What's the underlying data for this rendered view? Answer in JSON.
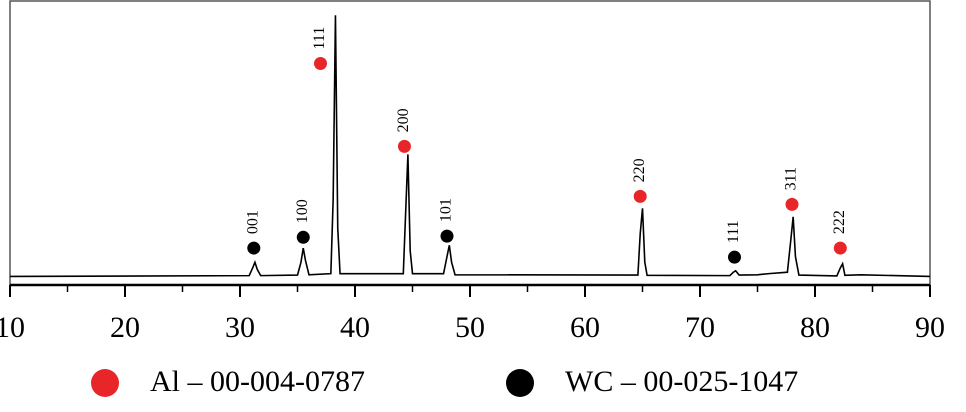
{
  "chart_data": {
    "type": "line",
    "x": [
      10,
      30.8,
      31.1,
      31.3,
      31.5,
      31.8,
      35.0,
      35.3,
      35.5,
      35.7,
      36.0,
      37.9,
      38.1,
      38.3,
      38.5,
      38.7,
      44.2,
      44.4,
      44.6,
      44.8,
      45.0,
      47.7,
      48.0,
      48.2,
      48.4,
      48.7,
      64.6,
      64.8,
      65.0,
      65.2,
      65.4,
      72.6,
      72.9,
      73.1,
      73.4,
      75,
      76,
      77.6,
      77.9,
      78.1,
      78.3,
      78.6,
      81.9,
      82.2,
      82.4,
      82.6,
      84,
      90
    ],
    "values": [
      3,
      3.3,
      6,
      8,
      5.5,
      3.3,
      3.5,
      8,
      13,
      8.5,
      3.6,
      4,
      30,
      95,
      20,
      4,
      4,
      25,
      46,
      12,
      4,
      4,
      10,
      14,
      8,
      3.6,
      3.5,
      18,
      27,
      8,
      3.4,
      3.3,
      4.5,
      5,
      3.5,
      3.6,
      4,
      4.5,
      16,
      24,
      10,
      3.5,
      3.2,
      6,
      7.5,
      3.4,
      3.6,
      3
    ],
    "color": "#000000",
    "xlim": [
      10,
      90
    ],
    "xticks": [
      10,
      20,
      30,
      40,
      50,
      60,
      70,
      80,
      90
    ],
    "xminorticks": [
      15,
      25,
      35,
      45,
      55,
      65,
      75,
      85
    ],
    "ylim": [
      0,
      100
    ],
    "phases": [
      {
        "name": "Al – 00-004-0787",
        "color": "#e8262a"
      },
      {
        "name": "WC – 00-025-1047",
        "color": "#000000"
      }
    ],
    "markers": [
      {
        "x": 31.2,
        "y": 13,
        "label": "001",
        "phase": 1
      },
      {
        "x": 35.5,
        "y": 16.8,
        "label": "100",
        "phase": 1
      },
      {
        "x": 37.0,
        "y": 78,
        "label": "111",
        "phase": 0
      },
      {
        "x": 44.3,
        "y": 48.8,
        "label": "200",
        "phase": 0
      },
      {
        "x": 48.0,
        "y": 17.2,
        "label": "101",
        "phase": 1
      },
      {
        "x": 64.8,
        "y": 31.2,
        "label": "220",
        "phase": 0
      },
      {
        "x": 73.0,
        "y": 9.8,
        "label": "111",
        "phase": 1
      },
      {
        "x": 78.0,
        "y": 28.4,
        "label": "311",
        "phase": 0
      },
      {
        "x": 82.2,
        "y": 13,
        "label": "222",
        "phase": 0
      }
    ]
  }
}
